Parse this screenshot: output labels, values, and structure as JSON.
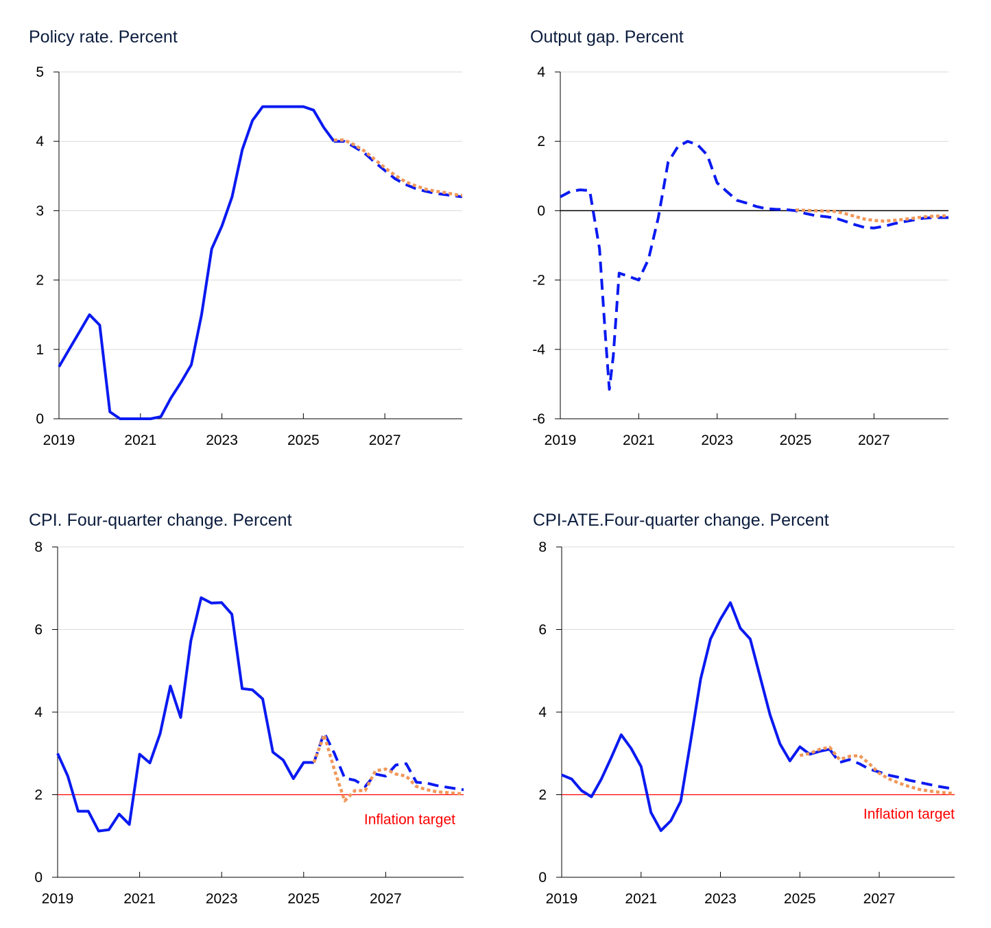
{
  "colors": {
    "actual": "#0a1af0",
    "alternative": "#f0975a",
    "target": "#ff0000",
    "grid": "#d9d9d9",
    "axis": "#000000"
  },
  "chart_data": [
    {
      "type": "line",
      "title": "Policy rate. Percent",
      "xlabel": "",
      "ylabel": "",
      "xlim": [
        2019,
        2028.9
      ],
      "ylim": [
        0,
        5
      ],
      "xticks": [
        "2019",
        "2021",
        "2023",
        "2025",
        "2027"
      ],
      "yticks": [
        "0",
        "1",
        "2",
        "3",
        "4",
        "5"
      ],
      "zero_line": false,
      "series": [
        {
          "name": "Policy rate",
          "style": "solid",
          "x": [
            2019.0,
            2019.25,
            2019.5,
            2019.75,
            2020.0,
            2020.25,
            2020.5,
            2020.75,
            2021.0,
            2021.25,
            2021.5,
            2021.75,
            2022.0,
            2022.25,
            2022.5,
            2022.75,
            2023.0,
            2023.25,
            2023.5,
            2023.75,
            2024.0,
            2024.25,
            2024.5,
            2024.75,
            2025.0,
            2025.25,
            2025.5,
            2025.75
          ],
          "y": [
            0.75,
            1.0,
            1.25,
            1.5,
            1.35,
            0.1,
            0.0,
            0.0,
            0.0,
            0.0,
            0.03,
            0.3,
            0.53,
            0.78,
            1.5,
            2.45,
            2.78,
            3.2,
            3.88,
            4.3,
            4.5,
            4.5,
            4.5,
            4.5,
            4.5,
            4.45,
            4.2,
            4.0
          ]
        },
        {
          "name": "Projection",
          "style": "dashed",
          "x": [
            2025.75,
            2026.0,
            2026.25,
            2026.5,
            2026.75,
            2027.0,
            2027.25,
            2027.5,
            2027.75,
            2028.0,
            2028.25,
            2028.5,
            2028.75,
            2028.9
          ],
          "y": [
            4.0,
            4.0,
            3.92,
            3.83,
            3.7,
            3.58,
            3.46,
            3.38,
            3.32,
            3.28,
            3.25,
            3.23,
            3.21,
            3.2
          ]
        },
        {
          "name": "Alternative projection",
          "style": "dotted",
          "x": [
            2025.75,
            2026.0,
            2026.25,
            2026.5,
            2026.75,
            2027.0,
            2027.25,
            2027.5,
            2027.75,
            2028.0,
            2028.25,
            2028.5,
            2028.75,
            2028.9
          ],
          "y": [
            4.02,
            4.02,
            3.95,
            3.86,
            3.74,
            3.62,
            3.51,
            3.42,
            3.36,
            3.31,
            3.28,
            3.26,
            3.23,
            3.22
          ]
        }
      ]
    },
    {
      "type": "line",
      "title": "Output gap. Percent",
      "xlabel": "",
      "ylabel": "",
      "xlim": [
        2019,
        2028.9
      ],
      "ylim": [
        -6,
        4
      ],
      "xticks": [
        "2019",
        "2021",
        "2023",
        "2025",
        "2027"
      ],
      "yticks": [
        "-6",
        "-4",
        "-2",
        "0",
        "2",
        "4"
      ],
      "zero_line": true,
      "series": [
        {
          "name": "Output gap",
          "style": "dashed",
          "x": [
            2019.0,
            2019.25,
            2019.5,
            2019.75,
            2020.0,
            2020.15,
            2020.25,
            2020.35,
            2020.5,
            2020.75,
            2021.0,
            2021.25,
            2021.5,
            2021.75,
            2022.0,
            2022.25,
            2022.5,
            2022.75,
            2023.0,
            2023.25,
            2023.5,
            2023.75,
            2024.0,
            2024.25,
            2024.5,
            2024.75,
            2025.0,
            2025.25,
            2025.5,
            2025.75,
            2026.0,
            2026.25,
            2026.5,
            2026.75,
            2027.0,
            2027.25,
            2027.5,
            2027.75,
            2028.0,
            2028.25,
            2028.5,
            2028.75,
            2028.9
          ],
          "y": [
            0.4,
            0.55,
            0.6,
            0.58,
            -1.1,
            -3.6,
            -5.15,
            -4.2,
            -1.8,
            -1.9,
            -2.0,
            -1.4,
            -0.2,
            1.4,
            1.85,
            2.0,
            1.9,
            1.6,
            0.8,
            0.55,
            0.3,
            0.22,
            0.12,
            0.06,
            0.04,
            0.03,
            0.0,
            -0.08,
            -0.14,
            -0.17,
            -0.21,
            -0.3,
            -0.4,
            -0.48,
            -0.5,
            -0.45,
            -0.38,
            -0.32,
            -0.27,
            -0.22,
            -0.2,
            -0.2,
            -0.2
          ]
        },
        {
          "name": "Alternative projection",
          "style": "dotted",
          "x": [
            2025.0,
            2025.25,
            2025.5,
            2025.75,
            2026.0,
            2026.25,
            2026.5,
            2026.75,
            2027.0,
            2027.25,
            2027.5,
            2027.75,
            2028.0,
            2028.25,
            2028.5,
            2028.75,
            2028.9
          ],
          "y": [
            0.02,
            0.01,
            0.0,
            -0.01,
            -0.02,
            -0.08,
            -0.16,
            -0.24,
            -0.28,
            -0.3,
            -0.28,
            -0.25,
            -0.22,
            -0.18,
            -0.16,
            -0.15,
            -0.15
          ]
        }
      ]
    },
    {
      "type": "line",
      "title": "CPI. Four-quarter change. Percent",
      "xlabel": "",
      "ylabel": "",
      "xlim": [
        2019,
        2028.9
      ],
      "ylim": [
        0,
        8
      ],
      "xticks": [
        "2019",
        "2021",
        "2023",
        "2025",
        "2027"
      ],
      "yticks": [
        "0",
        "2",
        "4",
        "6",
        "8"
      ],
      "zero_line": false,
      "inflation_target": 2,
      "target_label": "Inflation target",
      "series": [
        {
          "name": "CPI",
          "style": "solid",
          "x": [
            2019.0,
            2019.25,
            2019.5,
            2019.75,
            2020.0,
            2020.25,
            2020.5,
            2020.75,
            2021.0,
            2021.25,
            2021.5,
            2021.75,
            2022.0,
            2022.25,
            2022.5,
            2022.75,
            2023.0,
            2023.25,
            2023.5,
            2023.75,
            2024.0,
            2024.25,
            2024.5,
            2024.75,
            2025.0,
            2025.25
          ],
          "y": [
            3.0,
            2.45,
            1.6,
            1.6,
            1.12,
            1.15,
            1.53,
            1.28,
            2.98,
            2.77,
            3.48,
            4.63,
            3.87,
            5.73,
            6.77,
            6.64,
            6.65,
            6.37,
            4.57,
            4.54,
            4.32,
            3.03,
            2.84,
            2.39,
            2.78,
            2.78
          ]
        },
        {
          "name": "Projection",
          "style": "dashed",
          "x": [
            2025.25,
            2025.5,
            2025.75,
            2026.0,
            2026.25,
            2026.5,
            2026.75,
            2027.0,
            2027.25,
            2027.5,
            2027.75,
            2028.0,
            2028.25,
            2028.5,
            2028.75,
            2028.9
          ],
          "y": [
            2.78,
            3.5,
            3.0,
            2.4,
            2.35,
            2.2,
            2.5,
            2.45,
            2.72,
            2.75,
            2.3,
            2.28,
            2.22,
            2.18,
            2.14,
            2.12
          ]
        },
        {
          "name": "Alternative projection",
          "style": "dotted",
          "x": [
            2025.25,
            2025.5,
            2025.75,
            2026.0,
            2026.25,
            2026.5,
            2026.75,
            2027.0,
            2027.25,
            2027.5,
            2027.75,
            2028.0,
            2028.25,
            2028.5,
            2028.75,
            2028.9
          ],
          "y": [
            2.78,
            3.45,
            2.6,
            1.85,
            2.1,
            2.1,
            2.58,
            2.62,
            2.5,
            2.45,
            2.2,
            2.12,
            2.07,
            2.05,
            2.03,
            2.02
          ]
        }
      ]
    },
    {
      "type": "line",
      "title": "CPI-ATE.Four-quarter change. Percent",
      "xlabel": "",
      "ylabel": "",
      "xlim": [
        2019,
        2028.9
      ],
      "ylim": [
        0,
        8
      ],
      "xticks": [
        "2019",
        "2021",
        "2023",
        "2025",
        "2027"
      ],
      "yticks": [
        "0",
        "2",
        "4",
        "6",
        "8"
      ],
      "zero_line": false,
      "inflation_target": 2,
      "target_label": "Inflation target",
      "series": [
        {
          "name": "CPI-ATE",
          "style": "solid",
          "x": [
            2019.0,
            2019.25,
            2019.5,
            2019.75,
            2020.0,
            2020.25,
            2020.5,
            2020.75,
            2021.0,
            2021.25,
            2021.5,
            2021.75,
            2022.0,
            2022.25,
            2022.5,
            2022.75,
            2023.0,
            2023.25,
            2023.5,
            2023.75,
            2024.0,
            2024.25,
            2024.5,
            2024.75,
            2025.0,
            2025.25,
            2025.5,
            2025.75
          ],
          "y": [
            2.48,
            2.38,
            2.1,
            1.95,
            2.38,
            2.9,
            3.45,
            3.12,
            2.68,
            1.57,
            1.13,
            1.37,
            1.84,
            3.3,
            4.8,
            5.77,
            6.25,
            6.65,
            6.03,
            5.77,
            4.85,
            3.93,
            3.23,
            2.82,
            3.16,
            2.98,
            3.05,
            3.1
          ]
        },
        {
          "name": "Projection",
          "style": "dashed",
          "x": [
            2025.75,
            2026.0,
            2026.25,
            2026.5,
            2026.75,
            2027.0,
            2027.25,
            2027.5,
            2027.75,
            2028.0,
            2028.25,
            2028.5,
            2028.75,
            2028.9
          ],
          "y": [
            3.1,
            2.78,
            2.85,
            2.75,
            2.62,
            2.55,
            2.47,
            2.42,
            2.35,
            2.3,
            2.25,
            2.2,
            2.16,
            2.14
          ]
        },
        {
          "name": "Alternative projection",
          "style": "dotted",
          "x": [
            2025.0,
            2025.25,
            2025.5,
            2025.75,
            2026.0,
            2026.25,
            2026.5,
            2026.75,
            2027.0,
            2027.25,
            2027.5,
            2027.75,
            2028.0,
            2028.25,
            2028.5,
            2028.75,
            2028.9
          ],
          "y": [
            2.95,
            3.0,
            3.1,
            3.15,
            2.85,
            2.93,
            2.95,
            2.75,
            2.52,
            2.38,
            2.28,
            2.2,
            2.13,
            2.09,
            2.06,
            2.04,
            2.03
          ]
        }
      ]
    }
  ]
}
